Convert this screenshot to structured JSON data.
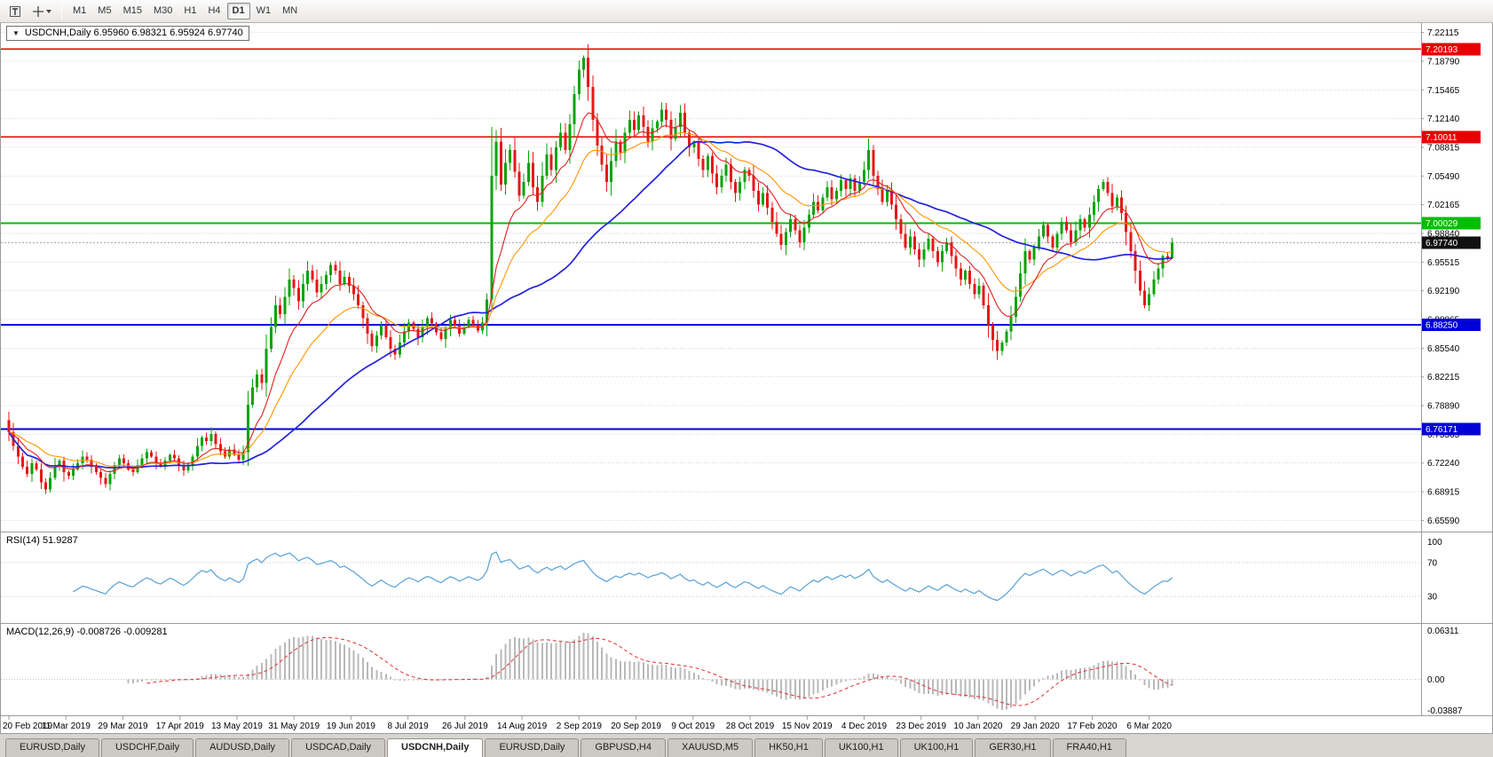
{
  "toolbar": {
    "timeframes": [
      "M1",
      "M5",
      "M15",
      "M30",
      "H1",
      "H4",
      "D1",
      "W1",
      "MN"
    ],
    "active_timeframe": "D1",
    "icons": [
      {
        "name": "text-tool"
      },
      {
        "name": "crosshair-tool"
      }
    ]
  },
  "icons": {
    "collapse_arrow": "▼"
  },
  "chart_data": {
    "type": "candlestick",
    "symbol": "USDCNH",
    "timeframe": "Daily",
    "header_text": "USDCNH,Daily 6.95960 6.98321 6.95924 6.97740",
    "ohlc": {
      "open": "6.95960",
      "high": "6.98321",
      "low": "6.95924",
      "close": "6.97740"
    },
    "price_range": [
      6.644,
      7.229
    ],
    "price_ticks": [
      "7.22115",
      "7.18790",
      "7.15465",
      "7.12140",
      "7.08815",
      "7.05490",
      "7.02165",
      "6.98840",
      "6.95515",
      "6.92190",
      "6.88865",
      "6.85540",
      "6.82215",
      "6.78890",
      "6.75565",
      "6.72240",
      "6.68915",
      "6.65590"
    ],
    "x_labels": [
      "20 Feb 2019",
      "11 Mar 2019",
      "29 Mar 2019",
      "17 Apr 2019",
      "13 May 2019",
      "31 May 2019",
      "19 Jun 2019",
      "8 Jul 2019",
      "26 Jul 2019",
      "14 Aug 2019",
      "2 Sep 2019",
      "20 Sep 2019",
      "9 Oct 2019",
      "28 Oct 2019",
      "15 Nov 2019",
      "4 Dec 2019",
      "23 Dec 2019",
      "10 Jan 2020",
      "29 Jan 2020",
      "17 Feb 2020",
      "6 Mar 2020"
    ],
    "first_open": 6.772,
    "closes": [
      6.758,
      6.742,
      6.73,
      6.718,
      6.71,
      6.722,
      6.715,
      6.7,
      6.692,
      6.705,
      6.718,
      6.725,
      6.712,
      6.708,
      6.715,
      6.722,
      6.73,
      6.726,
      6.718,
      6.712,
      6.705,
      6.698,
      6.71,
      6.72,
      6.728,
      6.722,
      6.715,
      6.712,
      6.72,
      6.728,
      6.735,
      6.73,
      6.722,
      6.718,
      6.725,
      6.732,
      6.728,
      6.72,
      6.714,
      6.72,
      6.73,
      6.742,
      6.752,
      6.748,
      6.756,
      6.744,
      6.736,
      6.73,
      6.738,
      6.732,
      6.726,
      6.735,
      6.79,
      6.81,
      6.825,
      6.815,
      6.855,
      6.88,
      6.905,
      6.895,
      6.915,
      6.935,
      6.925,
      6.91,
      6.93,
      6.945,
      6.935,
      6.92,
      6.93,
      6.94,
      6.952,
      6.945,
      6.93,
      6.938,
      6.928,
      6.918,
      6.905,
      6.89,
      6.872,
      6.858,
      6.87,
      6.882,
      6.868,
      6.855,
      6.848,
      6.862,
      6.875,
      6.885,
      6.878,
      6.868,
      6.88,
      6.89,
      6.884,
      6.874,
      6.866,
      6.878,
      6.888,
      6.882,
      6.872,
      6.88,
      6.888,
      6.882,
      6.876,
      6.885,
      6.912,
      7.055,
      7.095,
      7.045,
      7.07,
      7.085,
      7.06,
      7.032,
      7.048,
      7.07,
      7.042,
      7.025,
      7.055,
      7.08,
      7.062,
      7.088,
      7.105,
      7.085,
      7.115,
      7.15,
      7.178,
      7.192,
      7.158,
      7.12,
      7.09,
      7.068,
      7.048,
      7.072,
      7.095,
      7.082,
      7.105,
      7.12,
      7.108,
      7.125,
      7.112,
      7.095,
      7.11,
      7.118,
      7.132,
      7.12,
      7.098,
      7.112,
      7.128,
      7.105,
      7.088,
      7.095,
      7.075,
      7.062,
      7.078,
      7.058,
      7.042,
      7.055,
      7.068,
      7.048,
      7.035,
      7.048,
      7.062,
      7.055,
      7.038,
      7.022,
      7.035,
      7.018,
      7.002,
      6.988,
      6.975,
      6.99,
      7.005,
      6.992,
      6.978,
      6.995,
      7.01,
      7.025,
      7.015,
      7.03,
      7.042,
      7.028,
      7.038,
      7.05,
      7.04,
      7.052,
      7.038,
      7.048,
      7.062,
      7.085,
      7.055,
      7.04,
      7.025,
      7.038,
      7.022,
      7.005,
      6.988,
      6.972,
      6.985,
      6.97,
      6.958,
      6.97,
      6.982,
      6.968,
      6.955,
      6.968,
      6.978,
      6.962,
      6.948,
      6.935,
      6.945,
      6.93,
      6.918,
      6.928,
      6.905,
      6.882,
      6.865,
      6.852,
      6.862,
      6.875,
      6.892,
      6.915,
      6.942,
      6.968,
      6.958,
      6.972,
      6.985,
      6.998,
      6.985,
      6.972,
      6.988,
      7.002,
      6.992,
      6.978,
      6.992,
      7.005,
      6.995,
      7.01,
      7.025,
      7.04,
      7.048,
      7.035,
      7.02,
      7.03,
      7.012,
      6.99,
      6.968,
      6.945,
      6.922,
      6.905,
      6.918,
      6.935,
      6.948,
      6.962,
      6.9596,
      6.9774
    ],
    "ohlc_overrides": [
      [
        105,
        6.912,
        7.112,
        6.897,
        7.055
      ],
      [
        253,
        6.9596,
        6.98321,
        6.95924,
        6.9774
      ]
    ],
    "colors": {
      "up": "#09a309",
      "down": "#e61717"
    },
    "hlines": [
      {
        "price": 7.20193,
        "label": "7.20193",
        "color": "#e80000",
        "width": 1.5
      },
      {
        "price": 7.10011,
        "label": "7.10011",
        "color": "#e80000",
        "width": 1.5
      },
      {
        "price": 7.00029,
        "label": "7.00029",
        "color": "#00bf00",
        "width": 2
      },
      {
        "price": 6.8825,
        "label": "6.88250",
        "color": "#0000d8",
        "width": 2
      },
      {
        "price": 6.76171,
        "label": "6.76171",
        "color": "#0000d8",
        "width": 2
      }
    ],
    "current_price": {
      "price": 6.9774,
      "label": "6.97740",
      "badge_color": "#111111"
    },
    "ma": [
      {
        "type": "sma",
        "period": 45,
        "color": "#2222dd",
        "width": 1.7
      },
      {
        "type": "ema",
        "period": 21,
        "color": "#ff9500",
        "width": 1.1
      },
      {
        "type": "ema",
        "period": 10,
        "color": "#e02020",
        "width": 1.1
      }
    ],
    "rsi": {
      "label": "RSI(14) 51.9287",
      "period": 14,
      "color": "#57a1d8",
      "grid_levels": [
        70,
        30
      ],
      "axis": [
        {
          "v": 100,
          "label": "100"
        },
        {
          "v": 70,
          "label": "70"
        },
        {
          "v": 30,
          "label": "30"
        }
      ]
    },
    "macd": {
      "label": "MACD(12,26,9) -0.008726 -0.009281",
      "fast": 12,
      "slow": 26,
      "signal_period": 9,
      "histogram_color": "#b9b9b9",
      "signal_color": "#e03030",
      "range": [
        -0.03887,
        0.06311
      ],
      "axis": [
        {
          "v": 0.06311,
          "label": "0.06311"
        },
        {
          "v": 0,
          "label": "0.00"
        },
        {
          "v": -0.03887,
          "label": "-0.03887"
        }
      ]
    }
  },
  "tabs": {
    "items": [
      {
        "label": "EURUSD,Daily",
        "active": false
      },
      {
        "label": "USDCHF,Daily",
        "active": false
      },
      {
        "label": "AUDUSD,Daily",
        "active": false
      },
      {
        "label": "USDCAD,Daily",
        "active": false
      },
      {
        "label": "USDCNH,Daily",
        "active": true
      },
      {
        "label": "EURUSD,Daily",
        "active": false
      },
      {
        "label": "GBPUSD,H4",
        "active": false
      },
      {
        "label": "XAUUSD,M5",
        "active": false
      },
      {
        "label": "HK50,H1",
        "active": false
      },
      {
        "label": "UK100,H1",
        "active": false
      },
      {
        "label": "UK100,H1",
        "active": false
      },
      {
        "label": "GER30,H1",
        "active": false
      },
      {
        "label": "FRA40,H1",
        "active": false
      }
    ]
  }
}
